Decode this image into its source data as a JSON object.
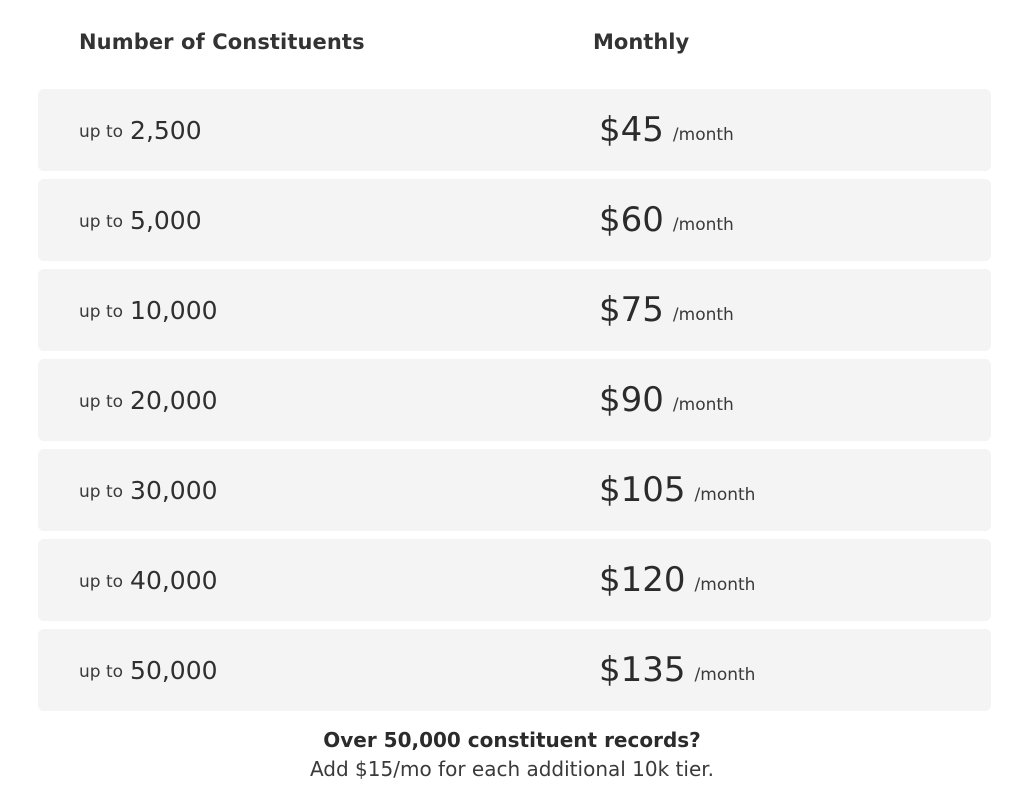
{
  "header": {
    "constituents_label": "Number of Constituents",
    "monthly_label": "Monthly"
  },
  "tiers": [
    {
      "prefix": "up to",
      "count": "2,500",
      "price": "$45",
      "period": "/month"
    },
    {
      "prefix": "up to",
      "count": "5,000",
      "price": "$60",
      "period": "/month"
    },
    {
      "prefix": "up to",
      "count": "10,000",
      "price": "$75",
      "period": "/month"
    },
    {
      "prefix": "up to",
      "count": "20,000",
      "price": "$90",
      "period": "/month"
    },
    {
      "prefix": "up to",
      "count": "30,000",
      "price": "$105",
      "period": "/month"
    },
    {
      "prefix": "up to",
      "count": "40,000",
      "price": "$120",
      "period": "/month"
    },
    {
      "prefix": "up to",
      "count": "50,000",
      "price": "$135",
      "period": "/month"
    }
  ],
  "footer": {
    "question": "Over 50,000 constituent records?",
    "note": "Add $15/mo for each additional 10k tier."
  }
}
